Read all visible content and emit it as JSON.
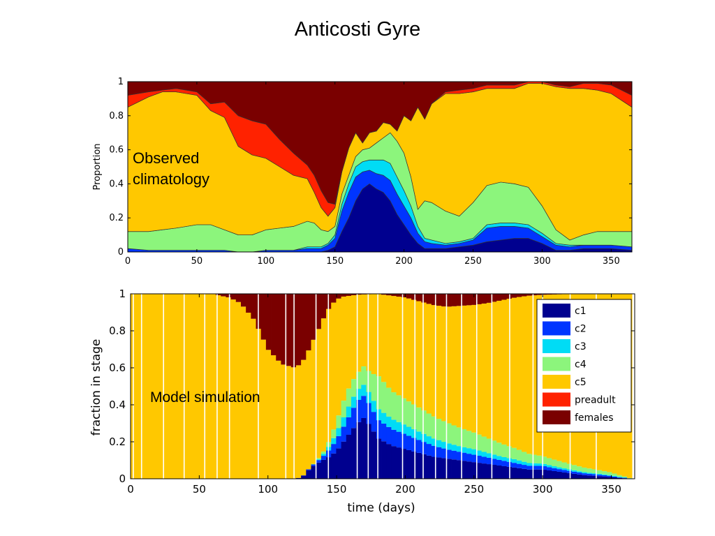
{
  "title": "Anticosti Gyre",
  "colors": {
    "c1": "#00008f",
    "c2": "#0035ff",
    "c3": "#00dcf5",
    "c4": "#8cf57c",
    "c5": "#ffc800",
    "preadult": "#ff2200",
    "females": "#7a0000"
  },
  "chart_data": [
    {
      "type": "area",
      "stacked": true,
      "annotation": "Observed\nclimatology",
      "xlabel": "",
      "ylabel": "Proportion",
      "xlim": [
        0,
        365
      ],
      "ylim": [
        0,
        1
      ],
      "xticks": [
        0,
        50,
        100,
        150,
        200,
        250,
        300,
        350
      ],
      "yticks": [
        0,
        0.2,
        0.4,
        0.6,
        0.8,
        1
      ],
      "grid": false,
      "x": [
        0,
        15,
        25,
        35,
        50,
        60,
        70,
        80,
        90,
        100,
        110,
        120,
        130,
        135,
        140,
        145,
        150,
        155,
        160,
        165,
        170,
        175,
        180,
        185,
        190,
        195,
        200,
        205,
        210,
        215,
        220,
        230,
        240,
        250,
        260,
        270,
        280,
        290,
        300,
        310,
        320,
        330,
        340,
        350,
        365
      ],
      "series": [
        {
          "name": "c1",
          "values": [
            0,
            0,
            0,
            0,
            0,
            0,
            0,
            0,
            0,
            0,
            0,
            0,
            0,
            0,
            0,
            0.01,
            0.03,
            0.12,
            0.2,
            0.3,
            0.37,
            0.4,
            0.37,
            0.35,
            0.3,
            0.22,
            0.16,
            0.1,
            0.05,
            0.02,
            0.02,
            0.02,
            0.03,
            0.04,
            0.06,
            0.07,
            0.08,
            0.08,
            0.05,
            0.01,
            0.01,
            0.02,
            0.02,
            0.02,
            0.01
          ]
        },
        {
          "name": "c2",
          "values": [
            0.02,
            0.01,
            0.01,
            0.01,
            0.01,
            0.01,
            0.01,
            0.0,
            0.0,
            0.01,
            0.01,
            0.01,
            0.02,
            0.02,
            0.02,
            0.03,
            0.05,
            0.12,
            0.15,
            0.14,
            0.1,
            0.08,
            0.09,
            0.1,
            0.12,
            0.12,
            0.11,
            0.1,
            0.06,
            0.04,
            0.03,
            0.02,
            0.02,
            0.03,
            0.08,
            0.08,
            0.07,
            0.06,
            0.04,
            0.03,
            0.02,
            0.02,
            0.02,
            0.02,
            0.02
          ]
        },
        {
          "name": "c3",
          "values": [
            0.0,
            0.0,
            0.0,
            0.0,
            0.0,
            0.0,
            0.0,
            0.0,
            0.0,
            0.0,
            0.0,
            0.0,
            0.01,
            0.01,
            0.01,
            0.01,
            0.02,
            0.04,
            0.05,
            0.06,
            0.06,
            0.06,
            0.08,
            0.09,
            0.1,
            0.1,
            0.09,
            0.07,
            0.04,
            0.02,
            0.02,
            0.01,
            0.01,
            0.01,
            0.02,
            0.02,
            0.02,
            0.02,
            0.02,
            0.01,
            0.01,
            0.0,
            0.0,
            0.0,
            0.0
          ]
        },
        {
          "name": "c4",
          "values": [
            0.1,
            0.11,
            0.12,
            0.13,
            0.15,
            0.15,
            0.12,
            0.1,
            0.1,
            0.12,
            0.13,
            0.14,
            0.15,
            0.14,
            0.1,
            0.07,
            0.05,
            0.06,
            0.05,
            0.06,
            0.07,
            0.07,
            0.1,
            0.13,
            0.18,
            0.21,
            0.22,
            0.17,
            0.1,
            0.22,
            0.22,
            0.19,
            0.15,
            0.21,
            0.23,
            0.24,
            0.23,
            0.22,
            0.16,
            0.08,
            0.03,
            0.06,
            0.08,
            0.08,
            0.09
          ]
        },
        {
          "name": "c5",
          "values": [
            0.73,
            0.79,
            0.81,
            0.8,
            0.76,
            0.67,
            0.66,
            0.52,
            0.47,
            0.42,
            0.36,
            0.3,
            0.25,
            0.18,
            0.13,
            0.09,
            0.11,
            0.13,
            0.16,
            0.14,
            0.04,
            0.09,
            0.07,
            0.09,
            0.05,
            0.06,
            0.22,
            0.33,
            0.6,
            0.48,
            0.58,
            0.69,
            0.72,
            0.65,
            0.57,
            0.55,
            0.56,
            0.61,
            0.72,
            0.84,
            0.89,
            0.86,
            0.83,
            0.81,
            0.73
          ]
        },
        {
          "name": "preadult",
          "values": [
            0.07,
            0.03,
            0.01,
            0.02,
            0.02,
            0.04,
            0.09,
            0.18,
            0.2,
            0.2,
            0.16,
            0.13,
            0.08,
            0.1,
            0.1,
            0.08,
            0.02,
            0.0,
            0.0,
            0.0,
            0.0,
            0.0,
            0.0,
            0.0,
            0.0,
            0.0,
            0.0,
            0.0,
            0.0,
            0.0,
            0.0,
            0.01,
            0.02,
            0.02,
            0.02,
            0.02,
            0.02,
            0.01,
            0.01,
            0.01,
            0.01,
            0.03,
            0.04,
            0.05,
            0.07
          ]
        },
        {
          "name": "females",
          "values": [
            0.08,
            0.06,
            0.05,
            0.04,
            0.06,
            0.13,
            0.12,
            0.2,
            0.23,
            0.25,
            0.34,
            0.42,
            0.49,
            0.55,
            0.64,
            0.71,
            0.72,
            0.53,
            0.39,
            0.3,
            0.36,
            0.3,
            0.29,
            0.24,
            0.25,
            0.29,
            0.2,
            0.23,
            0.15,
            0.22,
            0.13,
            0.06,
            0.05,
            0.04,
            0.02,
            0.02,
            0.02,
            0.0,
            0.0,
            0.02,
            0.03,
            0.01,
            0.01,
            0.02,
            0.08
          ]
        }
      ]
    },
    {
      "type": "bar",
      "stacked": true,
      "annotation": "Model simulation",
      "xlabel": "time (days)",
      "ylabel": "fraction in stage",
      "xlim": [
        0,
        367
      ],
      "ylim": [
        0,
        1
      ],
      "xticks": [
        0,
        50,
        100,
        150,
        200,
        250,
        300,
        350
      ],
      "yticks": [
        0,
        0.2,
        0.4,
        0.6,
        0.8,
        1
      ],
      "grid": false,
      "legend": "top-right",
      "legend_entries": [
        "c1",
        "c2",
        "c3",
        "c4",
        "c5",
        "preadult",
        "females"
      ],
      "bar_width_days": 3.65,
      "separator_days": [
        2,
        8,
        24,
        39,
        54,
        63,
        72,
        93,
        113,
        119,
        135,
        144,
        165,
        173,
        180,
        198,
        207,
        213,
        222,
        230,
        241,
        252,
        263,
        276,
        293,
        300,
        320,
        339
      ],
      "profile": {
        "days": [
          0,
          10,
          30,
          60,
          65,
          72,
          80,
          90,
          100,
          110,
          115,
          120,
          125,
          130,
          135,
          140,
          145,
          150,
          155,
          160,
          165,
          170,
          175,
          180,
          190,
          200,
          210,
          220,
          230,
          240,
          250,
          260,
          270,
          280,
          290,
          300,
          310,
          320,
          330,
          340,
          350,
          355,
          360,
          365
        ],
        "c1": [
          0,
          0,
          0,
          0,
          0,
          0,
          0,
          0,
          0,
          0,
          0,
          0,
          0.01,
          0.05,
          0.08,
          0.1,
          0.12,
          0.15,
          0.2,
          0.25,
          0.3,
          0.33,
          0.28,
          0.22,
          0.18,
          0.16,
          0.14,
          0.12,
          0.11,
          0.1,
          0.09,
          0.08,
          0.07,
          0.06,
          0.05,
          0.05,
          0.04,
          0.03,
          0.02,
          0.015,
          0.01,
          0.005,
          0.003,
          0
        ],
        "c2": [
          0,
          0,
          0,
          0,
          0,
          0,
          0,
          0,
          0,
          0,
          0,
          0,
          0,
          0.005,
          0.01,
          0.02,
          0.04,
          0.06,
          0.08,
          0.1,
          0.12,
          0.12,
          0.11,
          0.1,
          0.09,
          0.08,
          0.07,
          0.06,
          0.05,
          0.045,
          0.04,
          0.035,
          0.03,
          0.025,
          0.02,
          0.02,
          0.015,
          0.012,
          0.01,
          0.008,
          0.005,
          0.003,
          0.002,
          0
        ],
        "c3": [
          0,
          0,
          0,
          0,
          0,
          0,
          0,
          0,
          0,
          0,
          0,
          0,
          0,
          0,
          0,
          0.01,
          0.02,
          0.04,
          0.05,
          0.06,
          0.06,
          0.06,
          0.06,
          0.06,
          0.055,
          0.05,
          0.045,
          0.04,
          0.035,
          0.03,
          0.03,
          0.025,
          0.02,
          0.02,
          0.015,
          0.012,
          0.01,
          0.008,
          0.006,
          0.005,
          0.004,
          0.003,
          0.002,
          0
        ],
        "c4": [
          0,
          0,
          0,
          0,
          0,
          0,
          0,
          0,
          0,
          0,
          0,
          0,
          0,
          0,
          0.005,
          0.01,
          0.03,
          0.06,
          0.09,
          0.1,
          0.09,
          0.1,
          0.12,
          0.18,
          0.15,
          0.14,
          0.13,
          0.12,
          0.11,
          0.1,
          0.09,
          0.08,
          0.07,
          0.06,
          0.05,
          0.04,
          0.035,
          0.03,
          0.025,
          0.02,
          0.015,
          0.01,
          0.005,
          0
        ],
        "preadult": [
          0,
          0,
          0,
          0,
          0,
          0,
          0,
          0,
          0,
          0,
          0,
          0,
          0,
          0,
          0,
          0,
          0,
          0,
          0,
          0,
          0,
          0,
          0,
          0,
          0,
          0,
          0,
          0,
          0,
          0,
          0,
          0,
          0,
          0,
          0,
          0,
          0,
          0,
          0,
          0,
          0,
          0,
          0,
          0
        ],
        "females": [
          0,
          0,
          0,
          0,
          0.01,
          0.02,
          0.05,
          0.14,
          0.3,
          0.38,
          0.39,
          0.4,
          0.37,
          0.3,
          0.22,
          0.14,
          0.07,
          0.03,
          0.015,
          0.01,
          0.005,
          0.003,
          0.002,
          0.001,
          0.01,
          0.02,
          0.04,
          0.06,
          0.07,
          0.065,
          0.06,
          0.05,
          0.035,
          0.02,
          0.01,
          0.005,
          0.003,
          0.001,
          0,
          0,
          0,
          0,
          0,
          0
        ]
      }
    }
  ]
}
